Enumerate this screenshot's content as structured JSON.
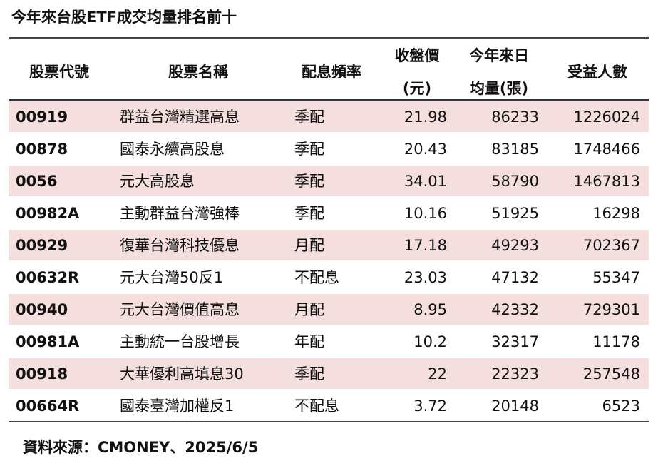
{
  "title": "今年來台股ETF成交均量排名前十",
  "table": {
    "header": [
      [
        "股票代號"
      ],
      [
        "股票名稱"
      ],
      [
        "配息頻率"
      ],
      [
        "收盤價",
        "(元)"
      ],
      [
        "今年來日",
        "均量(張)"
      ],
      [
        "受益人數"
      ]
    ],
    "rows": [
      [
        "00919",
        "群益台灣精選高息",
        "季配",
        21.98,
        86233,
        1226024
      ],
      [
        "00878",
        "國泰永續高股息",
        "季配",
        20.43,
        83185,
        1748466
      ],
      [
        "0056",
        "元大高股息",
        "季配",
        34.01,
        58790,
        1467813
      ],
      [
        "00982A",
        "主動群益台灣強棒",
        "季配",
        10.16,
        51925,
        16298
      ],
      [
        "00929",
        "復華台灣科技優息",
        "月配",
        17.18,
        49293,
        702367
      ],
      [
        "00632R",
        "元大台灣50反1",
        "不配息",
        23.03,
        47132,
        55347
      ],
      [
        "00940",
        "元大台灣價值高息",
        "月配",
        8.95,
        42332,
        729301
      ],
      [
        "00981A",
        "主動統一台股增長",
        "年配",
        10.2,
        32317,
        11178
      ],
      [
        "00918",
        "大華優利高填息30",
        "季配",
        22,
        22323,
        257548
      ],
      [
        "00664R",
        "國泰臺灣加權反1",
        "不配息",
        3.72,
        20148,
        6523
      ]
    ]
  },
  "source": "資料來源：CMONEY、2025/6/5"
}
